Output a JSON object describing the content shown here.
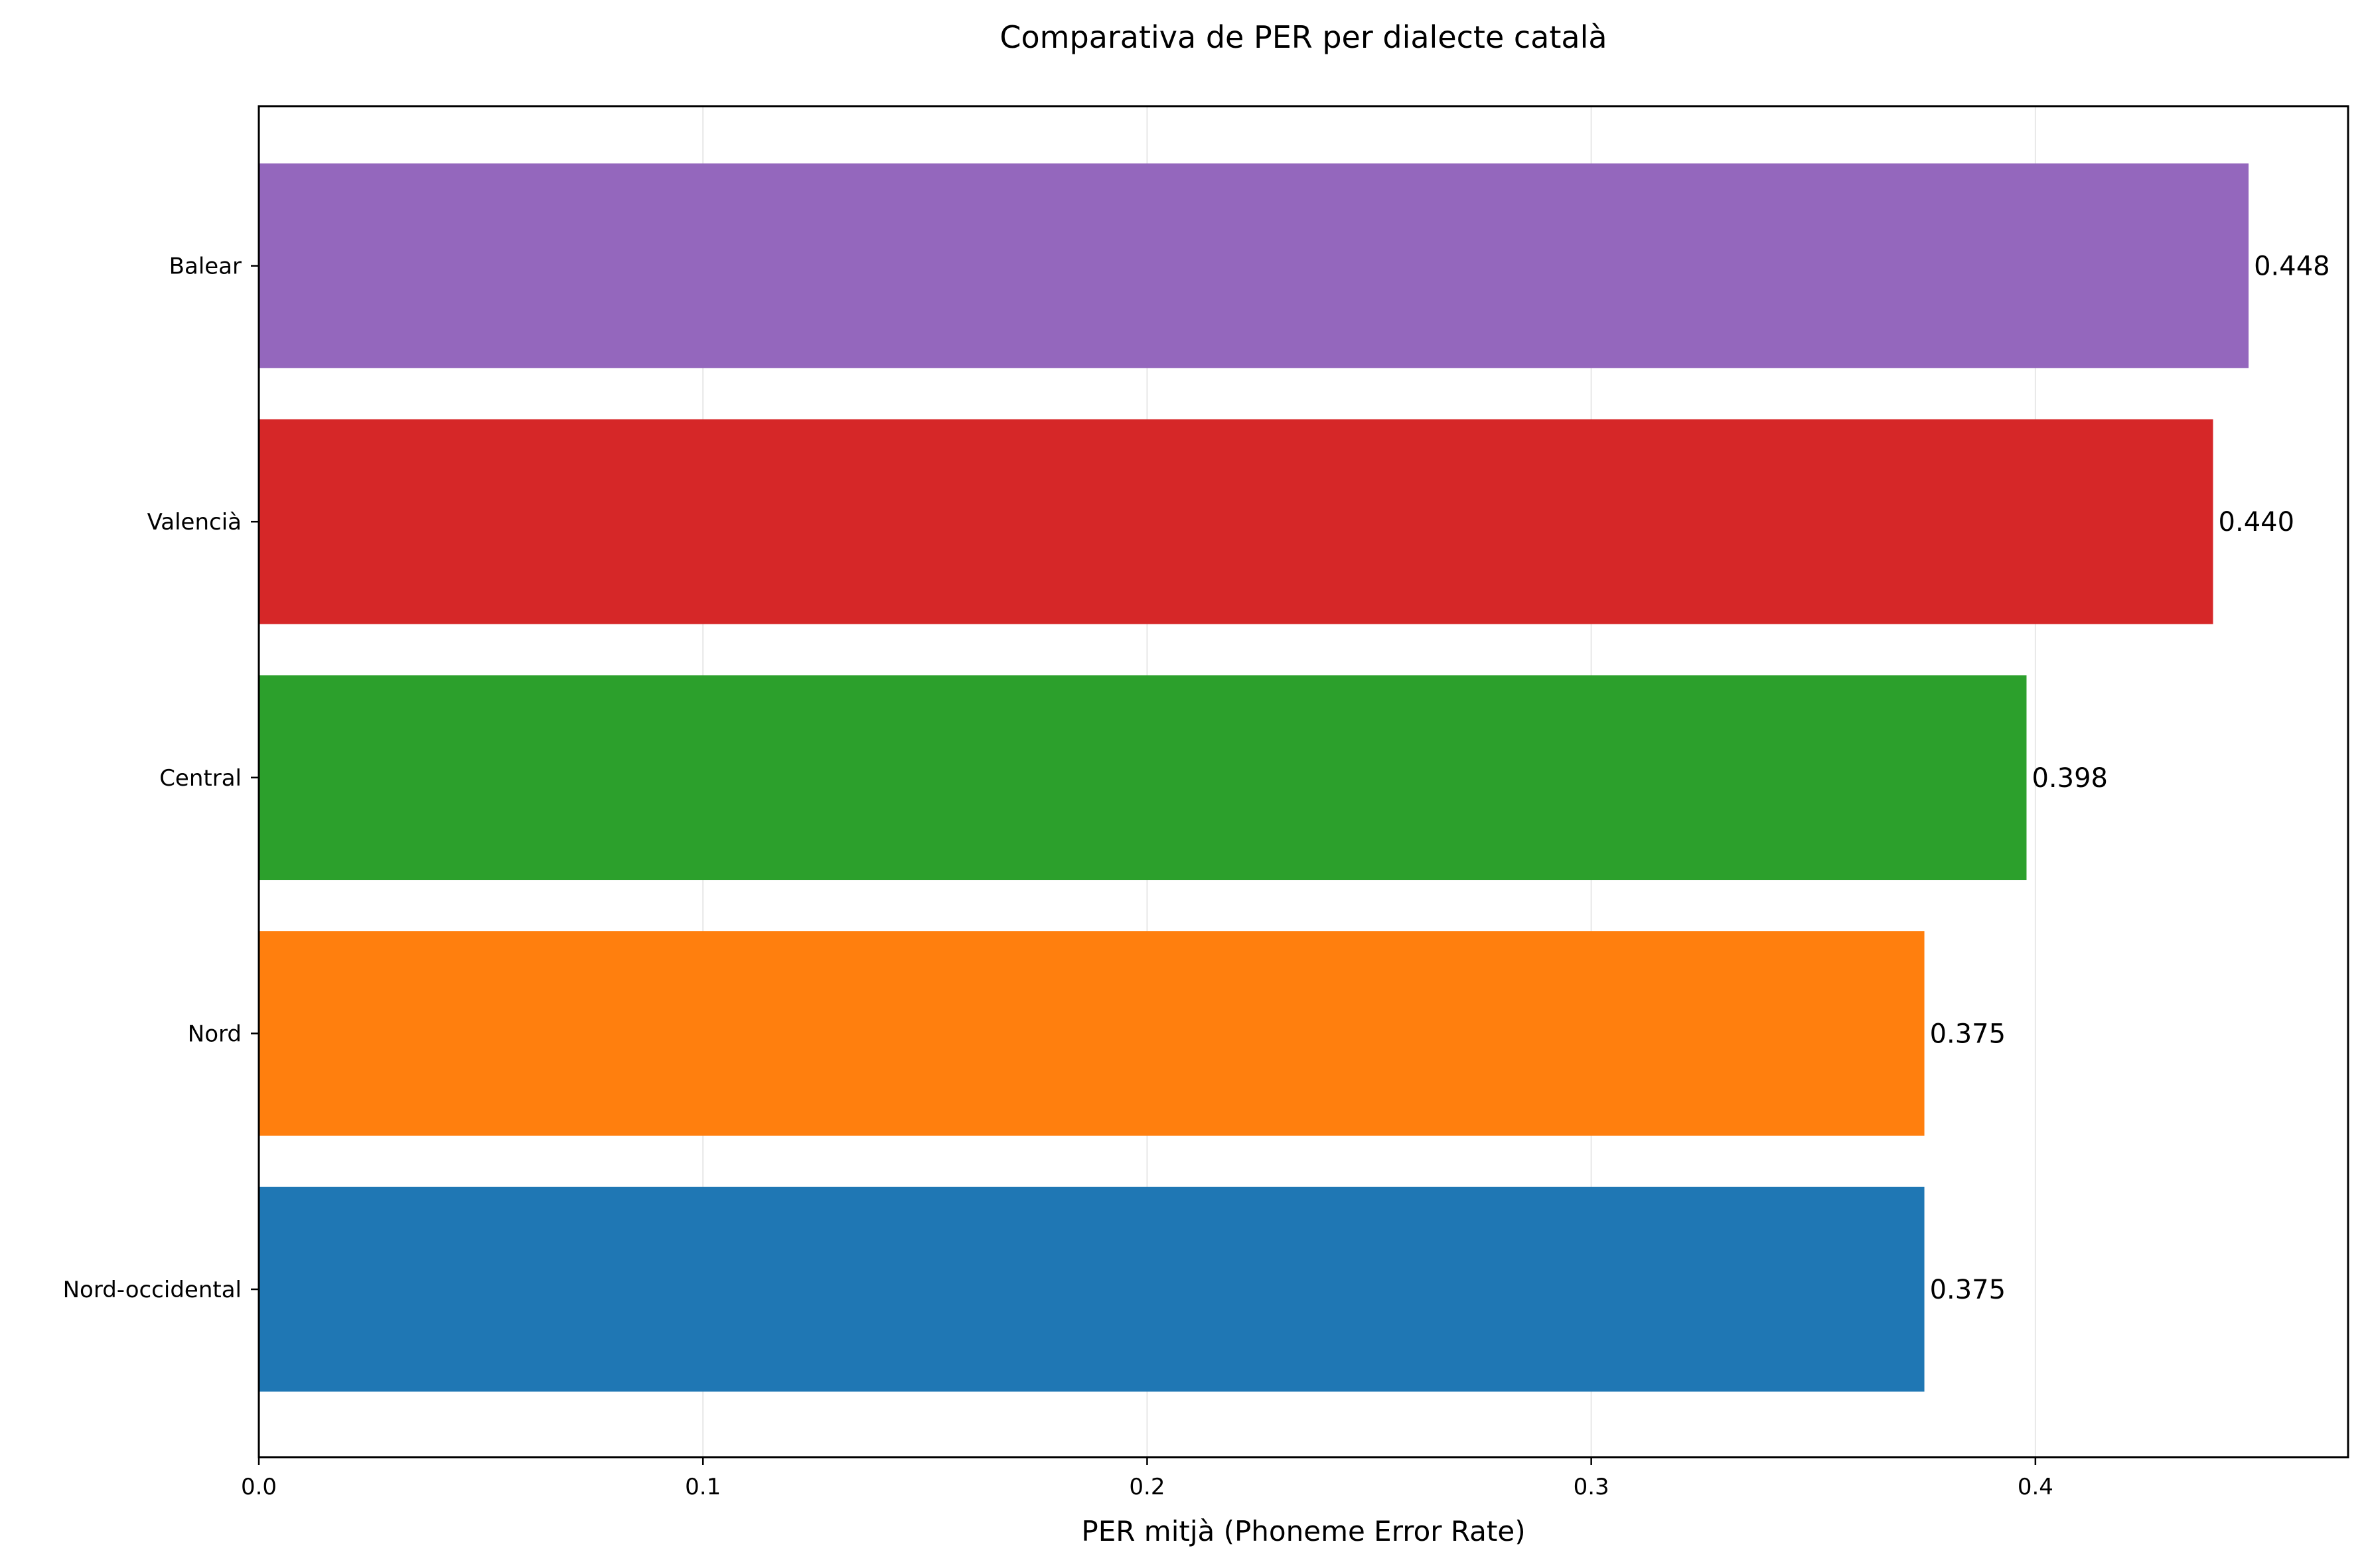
{
  "chart_data": {
    "type": "bar",
    "orientation": "horizontal",
    "title": "Comparativa de PER per dialecte català",
    "xlabel": "PER mitjà (Phoneme Error Rate)",
    "ylabel": "",
    "xlim": [
      0,
      0.4704
    ],
    "x_ticks": [
      0.0,
      0.1,
      0.2,
      0.3,
      0.4
    ],
    "x_tick_labels": [
      "0.0",
      "0.1",
      "0.2",
      "0.3",
      "0.4"
    ],
    "grid": "x",
    "categories": [
      "Nord-occidental",
      "Nord",
      "Central",
      "Valencià",
      "Balear"
    ],
    "values": [
      0.375,
      0.375,
      0.398,
      0.44,
      0.448
    ],
    "value_labels": [
      "0.375",
      "0.375",
      "0.398",
      "0.440",
      "0.448"
    ],
    "colors": [
      "#1f77b4",
      "#ff7f0e",
      "#2ca02c",
      "#d62728",
      "#9467bd"
    ]
  }
}
